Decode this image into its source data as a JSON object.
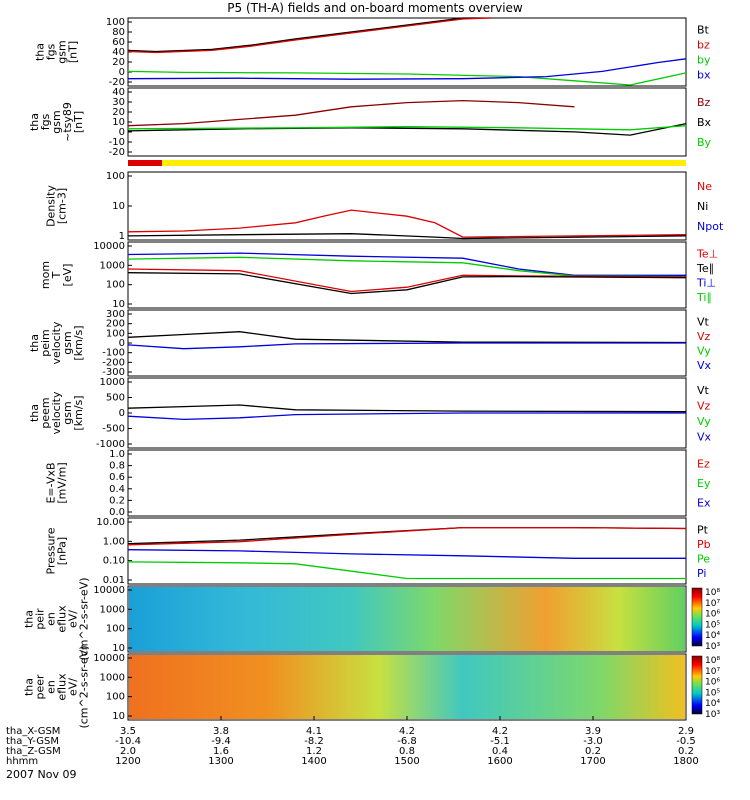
{
  "title": "P5 (TH-A) fields and on-board moments overview",
  "date_label": "2007 Nov 09",
  "colors": {
    "black": "#000000",
    "red": "#dd0000",
    "green": "#00cc00",
    "blue": "#0000dd",
    "darkred": "#8b0000",
    "yellow": "#ffee00"
  },
  "chart_data": [
    {
      "id": "p1",
      "type": "line",
      "ylabel_lines": [
        "tha",
        "fgs",
        "gsm",
        "[nT]"
      ],
      "yticks": [
        "100",
        "80",
        "60",
        "40",
        "20",
        "0",
        "-20"
      ],
      "ylim": [
        -30,
        100
      ],
      "legend": [
        {
          "label": "Bt",
          "color": "#000000"
        },
        {
          "label": "bz",
          "color": "#dd0000"
        },
        {
          "label": "by",
          "color": "#00cc00"
        },
        {
          "label": "bx",
          "color": "#0000dd"
        }
      ],
      "series": [
        {
          "name": "Bt",
          "color": "#000000",
          "x": [
            0,
            0.05,
            0.15,
            0.22,
            0.3,
            0.45,
            0.6,
            0.65
          ],
          "y": [
            38,
            36,
            40,
            48,
            60,
            80,
            100,
            105
          ]
        },
        {
          "name": "bz",
          "color": "#dd0000",
          "x": [
            0,
            0.05,
            0.15,
            0.22,
            0.3,
            0.45,
            0.6,
            0.65
          ],
          "y": [
            36,
            34,
            38,
            46,
            58,
            78,
            98,
            104
          ]
        },
        {
          "name": "by",
          "color": "#00cc00",
          "x": [
            0,
            0.1,
            0.3,
            0.5,
            0.7,
            0.8,
            0.9,
            1
          ],
          "y": [
            -2,
            -4,
            -5,
            -7,
            -12,
            -20,
            -28,
            -5
          ]
        },
        {
          "name": "bx",
          "color": "#0000dd",
          "x": [
            0,
            0.2,
            0.4,
            0.6,
            0.75,
            0.85,
            0.95,
            1
          ],
          "y": [
            -16,
            -15,
            -17,
            -16,
            -12,
            -2,
            15,
            22
          ]
        }
      ]
    },
    {
      "id": "p2",
      "type": "line",
      "ylabel_lines": [
        "tha",
        "fgs",
        "gsm",
        "~tsy89",
        "[nT]"
      ],
      "yticks": [
        "40",
        "30",
        "20",
        "10",
        "0",
        "-10",
        "-20"
      ],
      "ylim": [
        -25,
        40
      ],
      "legend": [
        {
          "label": "Bz",
          "color": "#8b0000"
        },
        {
          "label": "Bx",
          "color": "#000000"
        },
        {
          "label": "By",
          "color": "#00cc00"
        }
      ],
      "series": [
        {
          "name": "Bz",
          "color": "#8b0000",
          "x": [
            0,
            0.1,
            0.2,
            0.3,
            0.4,
            0.5,
            0.6,
            0.7,
            0.8
          ],
          "y": [
            4,
            6,
            10,
            14,
            22,
            26,
            28,
            26,
            22
          ]
        },
        {
          "name": "Bx",
          "color": "#000000",
          "x": [
            0,
            0.2,
            0.4,
            0.6,
            0.8,
            0.9,
            1
          ],
          "y": [
            -1,
            1,
            2,
            1,
            -2,
            -5,
            6
          ]
        },
        {
          "name": "By",
          "color": "#00cc00",
          "x": [
            0,
            0.3,
            0.5,
            0.7,
            0.9,
            1
          ],
          "y": [
            1,
            2,
            3,
            2,
            0,
            4
          ]
        }
      ]
    },
    {
      "id": "p3",
      "type": "line",
      "ylabel_lines": [
        "Density",
        "[cm-3]"
      ],
      "yticks": [
        "100",
        "10",
        "1"
      ],
      "ylim": [
        0.8,
        150
      ],
      "legend": [
        {
          "label": "Ne",
          "color": "#dd0000"
        },
        {
          "label": "Ni",
          "color": "#000000"
        },
        {
          "label": "Npot",
          "color": "#0000dd"
        }
      ],
      "series": [
        {
          "name": "Ne",
          "color": "#dd0000",
          "x": [
            0,
            0.1,
            0.2,
            0.3,
            0.35,
            0.4,
            0.5,
            0.55,
            0.6,
            1
          ],
          "y": [
            1.5,
            1.6,
            2,
            3,
            5,
            8,
            5,
            3,
            1,
            1.2
          ]
        },
        {
          "name": "Ni",
          "color": "#000000",
          "x": [
            0,
            0.2,
            0.4,
            0.55,
            0.6,
            1
          ],
          "y": [
            1.1,
            1.2,
            1.3,
            1.0,
            0.9,
            1.1
          ]
        }
      ]
    },
    {
      "id": "p4",
      "type": "line",
      "ylabel_lines": [
        "mom",
        "T",
        "[eV]"
      ],
      "yticks": [
        "10000",
        "1000",
        "100",
        "10"
      ],
      "ylim": [
        8,
        12000
      ],
      "legend": [
        {
          "label": "Te⊥",
          "color": "#dd0000"
        },
        {
          "label": "Te∥",
          "color": "#000000"
        },
        {
          "label": "Ti⊥",
          "color": "#0000dd"
        },
        {
          "label": "Ti∥",
          "color": "#00cc00"
        }
      ],
      "series": [
        {
          "name": "Ti⊥",
          "color": "#0000dd",
          "x": [
            0,
            0.2,
            0.4,
            0.6,
            0.7,
            0.8,
            1
          ],
          "y": [
            3000,
            3500,
            2500,
            2000,
            600,
            300,
            300
          ]
        },
        {
          "name": "Ti∥",
          "color": "#00cc00",
          "x": [
            0,
            0.2,
            0.4,
            0.6,
            0.7,
            0.8,
            1
          ],
          "y": [
            1800,
            2200,
            1500,
            1200,
            500,
            280,
            260
          ]
        },
        {
          "name": "Te⊥",
          "color": "#dd0000",
          "x": [
            0,
            0.2,
            0.4,
            0.5,
            0.6,
            0.7,
            1
          ],
          "y": [
            600,
            500,
            50,
            80,
            300,
            280,
            250
          ]
        },
        {
          "name": "Te∥",
          "color": "#000000",
          "x": [
            0,
            0.2,
            0.4,
            0.5,
            0.6,
            0.7,
            1
          ],
          "y": [
            400,
            350,
            40,
            60,
            250,
            260,
            230
          ]
        }
      ]
    },
    {
      "id": "p5",
      "type": "line",
      "ylabel_lines": [
        "tha",
        "peim",
        "velocity",
        "gsm",
        "[km/s]"
      ],
      "yticks": [
        "300",
        "200",
        "100",
        "0",
        "-100",
        "-200",
        "-300"
      ],
      "ylim": [
        -350,
        350
      ],
      "legend": [
        {
          "label": "Vt",
          "color": "#000000"
        },
        {
          "label": "Vz",
          "color": "#dd0000"
        },
        {
          "label": "Vy",
          "color": "#00cc00"
        },
        {
          "label": "Vx",
          "color": "#0000dd"
        }
      ],
      "series": [
        {
          "name": "Vt",
          "color": "#000000",
          "x": [
            0,
            0.1,
            0.2,
            0.3,
            0.6,
            1
          ],
          "y": [
            60,
            90,
            120,
            40,
            10,
            5
          ]
        },
        {
          "name": "Vx",
          "color": "#0000dd",
          "x": [
            0,
            0.1,
            0.2,
            0.3,
            0.6,
            1
          ],
          "y": [
            -20,
            -60,
            -40,
            -10,
            0,
            0
          ]
        }
      ]
    },
    {
      "id": "p6",
      "type": "line",
      "ylabel_lines": [
        "tha",
        "peem",
        "velocity",
        "gsm",
        "[km/s]"
      ],
      "yticks": [
        "1000",
        "500",
        "0",
        "-500",
        "-1000"
      ],
      "ylim": [
        -1100,
        1100
      ],
      "legend": [
        {
          "label": "Vt",
          "color": "#000000"
        },
        {
          "label": "Vz",
          "color": "#dd0000"
        },
        {
          "label": "Vy",
          "color": "#00cc00"
        },
        {
          "label": "Vx",
          "color": "#0000dd"
        }
      ],
      "series": [
        {
          "name": "Vt",
          "color": "#000000",
          "x": [
            0,
            0.1,
            0.2,
            0.3,
            0.6,
            1
          ],
          "y": [
            150,
            200,
            250,
            100,
            60,
            40
          ]
        },
        {
          "name": "Vx",
          "color": "#0000dd",
          "x": [
            0,
            0.1,
            0.2,
            0.3,
            0.6,
            1
          ],
          "y": [
            -100,
            -200,
            -150,
            -50,
            0,
            0
          ]
        }
      ]
    },
    {
      "id": "p7",
      "type": "line",
      "ylabel_lines": [
        "E=-VxB",
        "[mV/m]"
      ],
      "yticks": [
        "1.0",
        "0.8",
        "0.6",
        "0.4",
        "0.2",
        "0.0"
      ],
      "ylim": [
        0,
        1
      ],
      "legend": [
        {
          "label": "Ez",
          "color": "#dd0000"
        },
        {
          "label": "Ey",
          "color": "#00cc00"
        },
        {
          "label": "Ex",
          "color": "#0000dd"
        }
      ],
      "series": []
    },
    {
      "id": "p8",
      "type": "line",
      "ylabel_lines": [
        "Pressure",
        "[nPa]"
      ],
      "yticks": [
        "10.00",
        "1.00",
        "0.10",
        "0.01"
      ],
      "ylim": [
        0.008,
        15
      ],
      "legend": [
        {
          "label": "Pt",
          "color": "#000000"
        },
        {
          "label": "Pb",
          "color": "#dd0000"
        },
        {
          "label": "Pe",
          "color": "#00cc00"
        },
        {
          "label": "Pi",
          "color": "#0000dd"
        }
      ],
      "series": [
        {
          "name": "Pt",
          "color": "#000000",
          "x": [
            0,
            0.2,
            0.4,
            0.6,
            0.8,
            1
          ],
          "y": [
            0.8,
            1.2,
            2.5,
            5,
            5,
            4.5
          ]
        },
        {
          "name": "Pb",
          "color": "#dd0000",
          "x": [
            0,
            0.2,
            0.4,
            0.6,
            0.8,
            1
          ],
          "y": [
            0.7,
            1.0,
            2.3,
            5,
            5,
            4.5
          ]
        },
        {
          "name": "Pi",
          "color": "#0000dd",
          "x": [
            0,
            0.2,
            0.4,
            0.6,
            0.8,
            1
          ],
          "y": [
            0.4,
            0.35,
            0.25,
            0.2,
            0.15,
            0.15
          ]
        },
        {
          "name": "Pe",
          "color": "#00cc00",
          "x": [
            0,
            0.2,
            0.3,
            0.5,
            0.6,
            1
          ],
          "y": [
            0.1,
            0.09,
            0.08,
            0.015,
            0.015,
            0.015
          ]
        }
      ]
    },
    {
      "id": "p9",
      "type": "heatmap",
      "ylabel_lines": [
        "tha",
        "peir",
        "en",
        "eflux",
        "eV/",
        "(cm^2-s-sr-eV)"
      ],
      "yticks": [
        "10000",
        "1000",
        "100",
        "10"
      ],
      "colorbar_labels": [
        "10⁸",
        "10⁷",
        "10⁶",
        "10⁵",
        "10⁴",
        "10³"
      ]
    },
    {
      "id": "p10",
      "type": "heatmap",
      "ylabel_lines": [
        "tha",
        "peer",
        "en",
        "eflux",
        "eV/",
        "(cm^2-s-sr-eV)"
      ],
      "yticks": [
        "10000",
        "1000",
        "100",
        "10"
      ],
      "colorbar_labels": [
        "10⁸",
        "10⁷",
        "10⁶",
        "10⁵",
        "10⁴",
        "10³"
      ]
    }
  ],
  "xaxis": {
    "row_labels": [
      "tha_X-GSM",
      "tha_Y-GSM",
      "tha_Z-GSM",
      "hhmm"
    ],
    "columns": [
      {
        "x": "3.5",
        "y": "-10.4",
        "z": "2.0",
        "t": "1200"
      },
      {
        "x": "3.8",
        "y": "-9.4",
        "z": "1.6",
        "t": "1300"
      },
      {
        "x": "4.1",
        "y": "-8.2",
        "z": "1.2",
        "t": "1400"
      },
      {
        "x": "4.2",
        "y": "-6.8",
        "z": "0.8",
        "t": "1500"
      },
      {
        "x": "4.2",
        "y": "-5.1",
        "z": "0.4",
        "t": "1600"
      },
      {
        "x": "3.9",
        "y": "-3.0",
        "z": "0.2",
        "t": "1700"
      },
      {
        "x": "2.9",
        "y": "-0.5",
        "z": "0.2",
        "t": "1800"
      }
    ]
  }
}
